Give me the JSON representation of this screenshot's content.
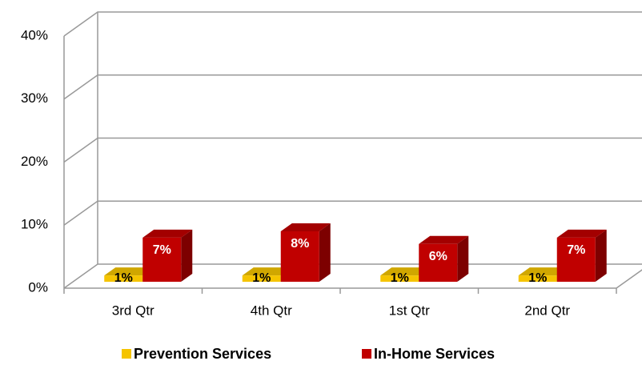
{
  "chart_data": {
    "type": "bar3d",
    "categories": [
      "3rd Qtr",
      "4th Qtr",
      "1st Qtr",
      "2nd Qtr"
    ],
    "series": [
      {
        "name": "Prevention Services",
        "color": "#f5c400",
        "values": [
          1,
          1,
          1,
          1
        ],
        "value_labels": [
          "1%",
          "1%",
          "1%",
          "1%"
        ]
      },
      {
        "name": "In-Home Services",
        "color": "#c00000",
        "values": [
          7,
          8,
          6,
          7
        ],
        "value_labels": [
          "7%",
          "8%",
          "6%",
          "7%"
        ]
      }
    ],
    "ylim": [
      0,
      40
    ],
    "yticks": [
      {
        "value": 0,
        "label": "0%"
      },
      {
        "value": 10,
        "label": "10%"
      },
      {
        "value": 20,
        "label": "20%"
      },
      {
        "value": 30,
        "label": "30%"
      },
      {
        "value": 40,
        "label": "40%"
      }
    ],
    "grid": true,
    "legend": "bottom"
  }
}
